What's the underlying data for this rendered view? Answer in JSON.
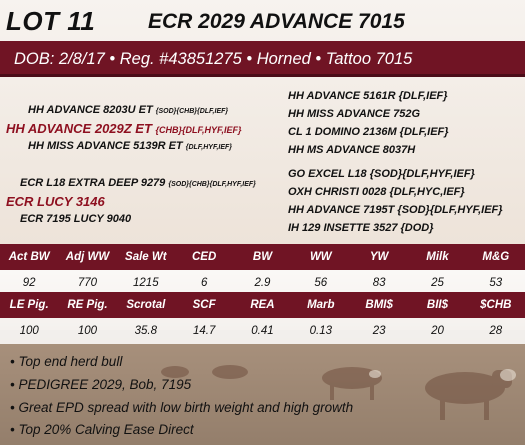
{
  "header": {
    "lot": "LOT 11",
    "animal_name": "ECR 2029 ADVANCE 7015"
  },
  "info_bar": "DOB: 2/8/17 • Reg. #43851275 • Horned • Tattoo 7015",
  "pedigree": {
    "sire": {
      "name": "HH ADVANCE 2029Z ET",
      "suffix": "{CHB}{DLF,HYF,IEF}"
    },
    "sire_sire": {
      "name": "HH ADVANCE 8203U ET",
      "suffix": "{SOD}{CHB}{DLF,IEF}"
    },
    "sire_dam": {
      "name": "HH MISS ADVANCE 5139R ET",
      "suffix": "{DLF,HYF,IEF}"
    },
    "dam": {
      "name": "ECR LUCY 3146",
      "suffix": ""
    },
    "dam_sire": {
      "name": "ECR L18 EXTRA DEEP 9279",
      "suffix": "{SOD}{CHB}{DLF,HYF,IEF}"
    },
    "dam_dam": {
      "name": "ECR 7195 LUCY 9040",
      "suffix": ""
    },
    "right": [
      "HH ADVANCE 5161R {DLF,IEF}",
      "HH MISS ADVANCE 752G",
      "CL 1 DOMINO 2136M {DLF,IEF}",
      "HH MS ADVANCE 8037H",
      "GO EXCEL L18 {SOD}{DLF,HYF,IEF}",
      "OXH CHRISTI 0028 {DLF,HYC,IEF}",
      "HH ADVANCE 7195T {SOD}{DLF,HYF,IEF}",
      "IH 129 INSETTE 3527 {DOD}"
    ]
  },
  "epd1": {
    "headers": [
      "Act BW",
      "Adj WW",
      "Sale Wt",
      "CED",
      "BW",
      "WW",
      "YW",
      "Milk",
      "M&G"
    ],
    "values": [
      "92",
      "770",
      "1215",
      "6",
      "2.9",
      "56",
      "83",
      "25",
      "53"
    ]
  },
  "epd2": {
    "headers": [
      "LE Pig.",
      "RE Pig.",
      "Scrotal",
      "SCF",
      "REA",
      "Marb",
      "BMI$",
      "BII$",
      "$CHB"
    ],
    "values": [
      "100",
      "100",
      "35.8",
      "14.7",
      "0.41",
      "0.13",
      "23",
      "20",
      "28"
    ]
  },
  "bullets": [
    "Top end herd bull",
    "PEDIGREE 2029, Bob, 7195",
    "Great EPD spread with low birth weight and high growth",
    "Top 20% Calving Ease Direct"
  ],
  "colors": {
    "maroon": "#701424",
    "pedigree_red": "#8e1020"
  }
}
